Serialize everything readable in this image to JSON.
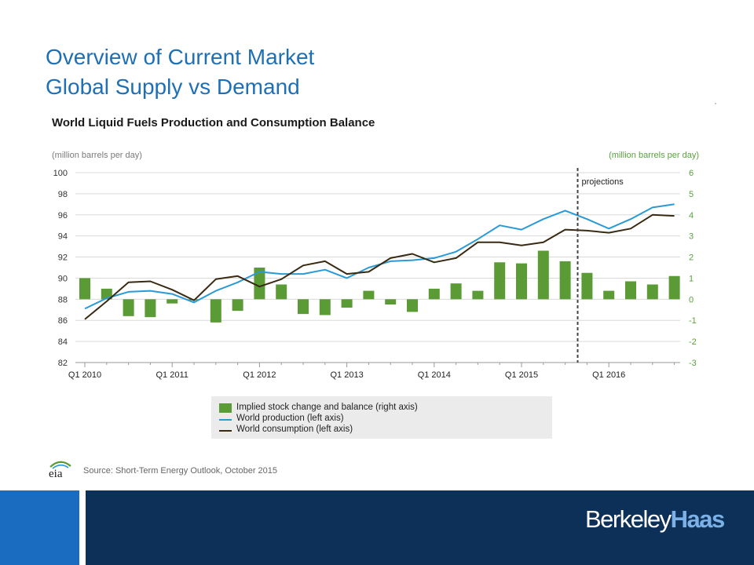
{
  "slide": {
    "title_line1": "Overview of Current Market",
    "title_line2": "Global Supply vs Demand",
    "source": "Source: Short-Term Energy Outlook, October 2015",
    "logo_text": "eia",
    "brand_part1": "Berkeley",
    "brand_part2": "Haas"
  },
  "colors": {
    "title": "#1f6fb5",
    "bars": "#5b9b36",
    "production": "#2a9ad6",
    "consumption": "#3a2a12",
    "footer_light": "#1a6cc0",
    "footer_dark": "#0d3059"
  },
  "chart_data": {
    "type": "bar+line",
    "title": "World Liquid Fuels Production and Consumption Balance",
    "ylabel_left": "(million barrels per day)",
    "ylabel_right": "(million barrels per day)",
    "ylim_left": [
      82,
      100
    ],
    "ylim_right": [
      -3,
      6
    ],
    "left_ticks": [
      "100",
      "98",
      "96",
      "94",
      "92",
      "90",
      "88",
      "86",
      "84",
      "82"
    ],
    "right_ticks": [
      "6",
      "5",
      "4",
      "3",
      "2",
      "1",
      "0",
      "-1",
      "-2",
      "-3"
    ],
    "x_tick_labels": [
      "Q1 2010",
      "Q1 2011",
      "Q1 2012",
      "Q1 2013",
      "Q1 2014",
      "Q1 2015",
      "Q1 2016"
    ],
    "quarters": [
      "Q1 2010",
      "Q2 2010",
      "Q3 2010",
      "Q4 2010",
      "Q1 2011",
      "Q2 2011",
      "Q3 2011",
      "Q4 2011",
      "Q1 2012",
      "Q2 2012",
      "Q3 2012",
      "Q4 2012",
      "Q1 2013",
      "Q2 2013",
      "Q3 2013",
      "Q4 2013",
      "Q1 2014",
      "Q2 2014",
      "Q3 2014",
      "Q4 2014",
      "Q1 2015",
      "Q2 2015",
      "Q3 2015",
      "Q4 2015",
      "Q1 2016",
      "Q2 2016",
      "Q3 2016",
      "Q4 2016"
    ],
    "projection_start": "Q4 2015",
    "annotation": "projections",
    "grid": true,
    "legend_position": "bottom",
    "series": [
      {
        "name": "Implied stock change and balance (right axis)",
        "type": "bar",
        "axis": "right",
        "values": [
          1.0,
          0.5,
          -0.8,
          -0.85,
          -0.2,
          -0.05,
          -1.1,
          -0.55,
          1.5,
          0.7,
          -0.7,
          -0.75,
          -0.4,
          0.4,
          -0.25,
          -0.6,
          0.5,
          0.75,
          0.4,
          1.75,
          1.7,
          2.3,
          1.8,
          1.25,
          0.4,
          0.85,
          0.7,
          1.1
        ]
      },
      {
        "name": "World production (left axis)",
        "type": "line",
        "axis": "left",
        "values": [
          87.1,
          88.1,
          88.7,
          88.8,
          88.5,
          87.7,
          88.8,
          89.6,
          90.6,
          90.4,
          90.4,
          90.8,
          90.0,
          91.0,
          91.6,
          91.7,
          91.9,
          92.5,
          93.7,
          95.0,
          94.6,
          95.6,
          96.4,
          95.6,
          94.7,
          95.6,
          96.7,
          97.0
        ]
      },
      {
        "name": "World consumption (left axis)",
        "type": "line",
        "axis": "left",
        "values": [
          86.1,
          87.8,
          89.6,
          89.7,
          88.9,
          87.9,
          89.9,
          90.2,
          89.2,
          89.9,
          91.2,
          91.6,
          90.4,
          90.6,
          91.9,
          92.3,
          91.5,
          91.9,
          93.4,
          93.4,
          93.1,
          93.4,
          94.6,
          94.5,
          94.3,
          94.7,
          96.0,
          95.9
        ]
      }
    ]
  }
}
